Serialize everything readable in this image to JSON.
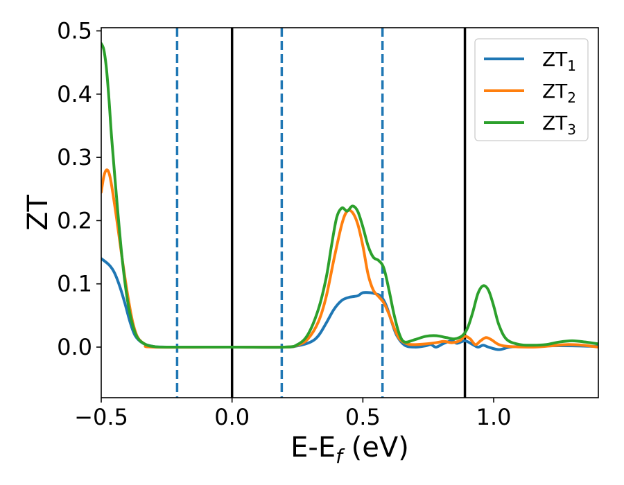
{
  "chart_data": {
    "type": "line",
    "xlabel": "E-E",
    "xlabel_sub": "f",
    "xlabel_unit": " (eV)",
    "ylabel": "ZT",
    "xlim": [
      -0.5,
      1.4
    ],
    "ylim": [
      -0.08,
      0.505
    ],
    "x_ticks": [
      -0.5,
      0.0,
      0.5,
      1.0
    ],
    "x_tick_labels": [
      "−0.5",
      "0.0",
      "0.5",
      "1.0"
    ],
    "y_ticks": [
      0.0,
      0.1,
      0.2,
      0.3,
      0.4,
      0.5
    ],
    "y_tick_labels": [
      "0.0",
      "0.1",
      "0.2",
      "0.3",
      "0.4",
      "0.5"
    ],
    "grid": false,
    "legend_position": "top-right",
    "vertical_lines": [
      {
        "x": -0.21,
        "style": "dashed",
        "color": "#1f77b4"
      },
      {
        "x": 0.0,
        "style": "solid",
        "color": "#000000"
      },
      {
        "x": 0.19,
        "style": "dashed",
        "color": "#1f77b4"
      },
      {
        "x": 0.575,
        "style": "dashed",
        "color": "#1f77b4"
      },
      {
        "x": 0.89,
        "style": "solid",
        "color": "#000000"
      }
    ],
    "series": [
      {
        "name": "ZT",
        "name_sub": "1",
        "color": "#1f77b4",
        "points": [
          [
            -0.5,
            0.14
          ],
          [
            -0.47,
            0.13
          ],
          [
            -0.45,
            0.118
          ],
          [
            -0.43,
            0.097
          ],
          [
            -0.41,
            0.07
          ],
          [
            -0.39,
            0.04
          ],
          [
            -0.37,
            0.018
          ],
          [
            -0.34,
            0.006
          ],
          [
            -0.3,
            0.001
          ],
          [
            -0.25,
            0.0
          ],
          [
            0.0,
            0.0
          ],
          [
            0.2,
            0.0
          ],
          [
            0.25,
            0.002
          ],
          [
            0.3,
            0.008
          ],
          [
            0.33,
            0.018
          ],
          [
            0.36,
            0.038
          ],
          [
            0.39,
            0.06
          ],
          [
            0.42,
            0.074
          ],
          [
            0.45,
            0.079
          ],
          [
            0.48,
            0.081
          ],
          [
            0.5,
            0.086
          ],
          [
            0.53,
            0.086
          ],
          [
            0.55,
            0.084
          ],
          [
            0.57,
            0.08
          ],
          [
            0.59,
            0.065
          ],
          [
            0.61,
            0.04
          ],
          [
            0.63,
            0.018
          ],
          [
            0.66,
            0.003
          ],
          [
            0.7,
            0.0
          ],
          [
            0.74,
            0.002
          ],
          [
            0.76,
            0.004
          ],
          [
            0.78,
            0.0
          ],
          [
            0.81,
            0.006
          ],
          [
            0.84,
            0.01
          ],
          [
            0.86,
            0.006
          ],
          [
            0.89,
            0.01
          ],
          [
            0.92,
            0.004
          ],
          [
            0.94,
            0.0
          ],
          [
            0.96,
            0.003
          ],
          [
            0.98,
            0.0
          ],
          [
            1.02,
            -0.004
          ],
          [
            1.06,
            0.0
          ],
          [
            1.1,
            0.001
          ],
          [
            1.2,
            0.002
          ],
          [
            1.3,
            0.002
          ],
          [
            1.4,
            0.001
          ]
        ]
      },
      {
        "name": "ZT",
        "name_sub": "2",
        "color": "#ff7f0e",
        "points": [
          [
            -0.5,
            0.245
          ],
          [
            -0.49,
            0.27
          ],
          [
            -0.48,
            0.28
          ],
          [
            -0.47,
            0.275
          ],
          [
            -0.46,
            0.255
          ],
          [
            -0.44,
            0.2
          ],
          [
            -0.42,
            0.14
          ],
          [
            -0.4,
            0.085
          ],
          [
            -0.38,
            0.04
          ],
          [
            -0.36,
            0.015
          ],
          [
            -0.33,
            0.004
          ],
          [
            -0.3,
            0.0
          ],
          [
            0.0,
            0.0
          ],
          [
            0.2,
            0.0
          ],
          [
            0.25,
            0.003
          ],
          [
            0.29,
            0.013
          ],
          [
            0.33,
            0.04
          ],
          [
            0.36,
            0.08
          ],
          [
            0.39,
            0.14
          ],
          [
            0.42,
            0.195
          ],
          [
            0.44,
            0.215
          ],
          [
            0.46,
            0.213
          ],
          [
            0.48,
            0.195
          ],
          [
            0.5,
            0.16
          ],
          [
            0.52,
            0.115
          ],
          [
            0.54,
            0.09
          ],
          [
            0.56,
            0.08
          ],
          [
            0.58,
            0.07
          ],
          [
            0.6,
            0.052
          ],
          [
            0.62,
            0.03
          ],
          [
            0.64,
            0.013
          ],
          [
            0.67,
            0.005
          ],
          [
            0.7,
            0.004
          ],
          [
            0.74,
            0.005
          ],
          [
            0.78,
            0.007
          ],
          [
            0.81,
            0.009
          ],
          [
            0.84,
            0.007
          ],
          [
            0.87,
            0.01
          ],
          [
            0.89,
            0.017
          ],
          [
            0.91,
            0.013
          ],
          [
            0.93,
            0.004
          ],
          [
            0.95,
            0.01
          ],
          [
            0.97,
            0.015
          ],
          [
            0.99,
            0.012
          ],
          [
            1.02,
            0.004
          ],
          [
            1.06,
            0.001
          ],
          [
            1.15,
            0.0
          ],
          [
            1.22,
            0.002
          ],
          [
            1.28,
            0.004
          ],
          [
            1.34,
            0.003
          ],
          [
            1.4,
            0.0
          ]
        ]
      },
      {
        "name": "ZT",
        "name_sub": "3",
        "color": "#2ca02c",
        "points": [
          [
            -0.5,
            0.48
          ],
          [
            -0.49,
            0.47
          ],
          [
            -0.48,
            0.44
          ],
          [
            -0.47,
            0.39
          ],
          [
            -0.46,
            0.33
          ],
          [
            -0.44,
            0.23
          ],
          [
            -0.42,
            0.14
          ],
          [
            -0.4,
            0.075
          ],
          [
            -0.38,
            0.035
          ],
          [
            -0.36,
            0.014
          ],
          [
            -0.33,
            0.004
          ],
          [
            -0.3,
            0.001
          ],
          [
            -0.25,
            0.0
          ],
          [
            0.0,
            0.0
          ],
          [
            0.2,
            0.0
          ],
          [
            0.25,
            0.004
          ],
          [
            0.29,
            0.02
          ],
          [
            0.33,
            0.06
          ],
          [
            0.36,
            0.11
          ],
          [
            0.38,
            0.16
          ],
          [
            0.4,
            0.205
          ],
          [
            0.42,
            0.22
          ],
          [
            0.44,
            0.215
          ],
          [
            0.46,
            0.223
          ],
          [
            0.48,
            0.215
          ],
          [
            0.5,
            0.19
          ],
          [
            0.52,
            0.16
          ],
          [
            0.54,
            0.142
          ],
          [
            0.56,
            0.137
          ],
          [
            0.58,
            0.125
          ],
          [
            0.6,
            0.09
          ],
          [
            0.62,
            0.05
          ],
          [
            0.64,
            0.02
          ],
          [
            0.66,
            0.008
          ],
          [
            0.7,
            0.012
          ],
          [
            0.74,
            0.017
          ],
          [
            0.78,
            0.018
          ],
          [
            0.82,
            0.015
          ],
          [
            0.85,
            0.013
          ],
          [
            0.88,
            0.018
          ],
          [
            0.9,
            0.03
          ],
          [
            0.92,
            0.055
          ],
          [
            0.94,
            0.085
          ],
          [
            0.96,
            0.097
          ],
          [
            0.98,
            0.09
          ],
          [
            1.0,
            0.065
          ],
          [
            1.02,
            0.035
          ],
          [
            1.05,
            0.012
          ],
          [
            1.1,
            0.004
          ],
          [
            1.15,
            0.003
          ],
          [
            1.2,
            0.004
          ],
          [
            1.25,
            0.008
          ],
          [
            1.3,
            0.01
          ],
          [
            1.35,
            0.008
          ],
          [
            1.4,
            0.005
          ]
        ]
      }
    ]
  }
}
